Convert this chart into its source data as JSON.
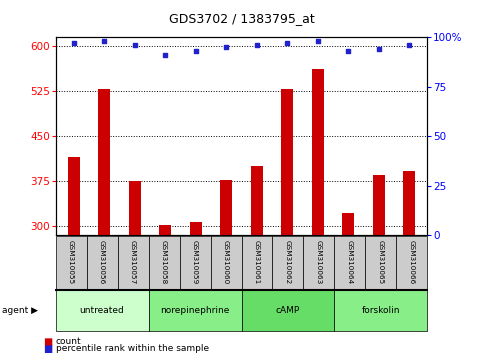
{
  "title": "GDS3702 / 1383795_at",
  "samples": [
    "GSM310055",
    "GSM310056",
    "GSM310057",
    "GSM310058",
    "GSM310059",
    "GSM310060",
    "GSM310061",
    "GSM310062",
    "GSM310063",
    "GSM310064",
    "GSM310065",
    "GSM310066"
  ],
  "counts": [
    415,
    528,
    375,
    302,
    308,
    378,
    400,
    528,
    562,
    322,
    385,
    393
  ],
  "percentiles": [
    97,
    98,
    96,
    91,
    93,
    95,
    96,
    97,
    98,
    93,
    94,
    96
  ],
  "ylim_left": [
    285,
    615
  ],
  "ylim_right": [
    0,
    100
  ],
  "yticks_left": [
    300,
    375,
    450,
    525,
    600
  ],
  "yticks_right": [
    0,
    25,
    50,
    75,
    100
  ],
  "bar_color": "#cc0000",
  "dot_color": "#2222cc",
  "agent_groups": [
    {
      "label": "untreated",
      "start": 0,
      "end": 3,
      "color": "#ccffcc"
    },
    {
      "label": "norepinephrine",
      "start": 3,
      "end": 6,
      "color": "#88ee88"
    },
    {
      "label": "cAMP",
      "start": 6,
      "end": 9,
      "color": "#66dd66"
    },
    {
      "label": "forskolin",
      "start": 9,
      "end": 12,
      "color": "#88ee88"
    }
  ],
  "legend_count_label": "count",
  "legend_percentile_label": "percentile rank within the sample",
  "sample_box_color": "#cccccc",
  "bar_width": 0.4
}
